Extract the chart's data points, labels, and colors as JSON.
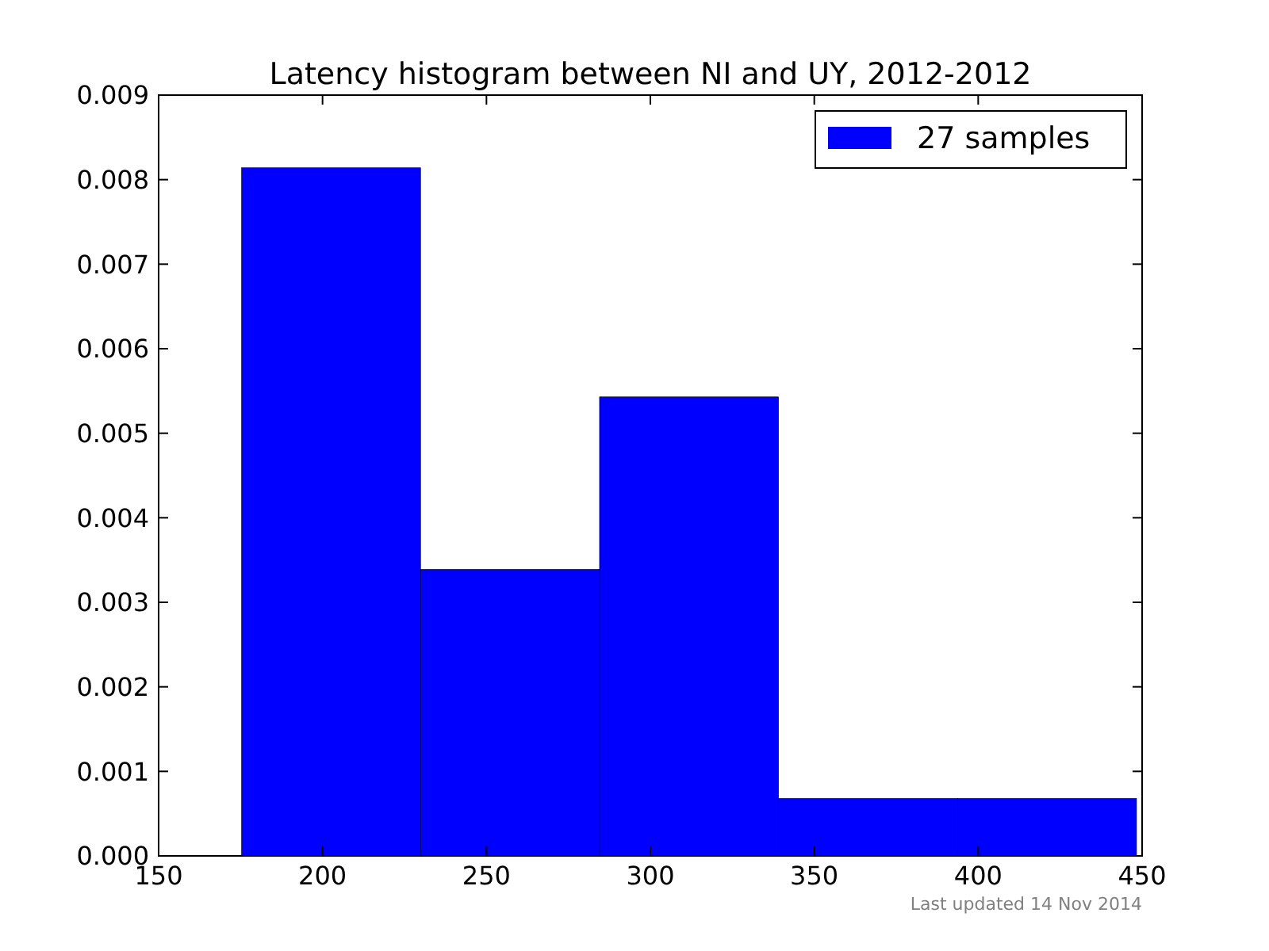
{
  "chart_data": {
    "type": "histogram",
    "title": "Latency histogram between NI and UY, 2012-2012",
    "bins": [
      175.3,
      229.9,
      284.5,
      339.1,
      393.7,
      448.3
    ],
    "series": [
      {
        "name": "27 samples",
        "color": "#0000ff",
        "values": [
          0.00814,
          0.00339,
          0.00543,
          0.00068,
          0.00068
        ]
      }
    ],
    "xlim": [
      150,
      450
    ],
    "xticks": [
      150,
      200,
      250,
      300,
      350,
      400,
      450
    ],
    "ylim": [
      0,
      0.009
    ],
    "yticks": [
      {
        "value": 0,
        "label": "0.000"
      },
      {
        "value": 0.001,
        "label": "0.001"
      },
      {
        "value": 0.002,
        "label": "0.002"
      },
      {
        "value": 0.003,
        "label": "0.003"
      },
      {
        "value": 0.004,
        "label": "0.004"
      },
      {
        "value": 0.005,
        "label": "0.005"
      },
      {
        "value": 0.006,
        "label": "0.006"
      },
      {
        "value": 0.007,
        "label": "0.007"
      },
      {
        "value": 0.008,
        "label": "0.008"
      },
      {
        "value": 0.009,
        "label": "0.009"
      }
    ],
    "legend": "top right",
    "annotations": [
      "Last updated 14 Nov 2014"
    ]
  }
}
